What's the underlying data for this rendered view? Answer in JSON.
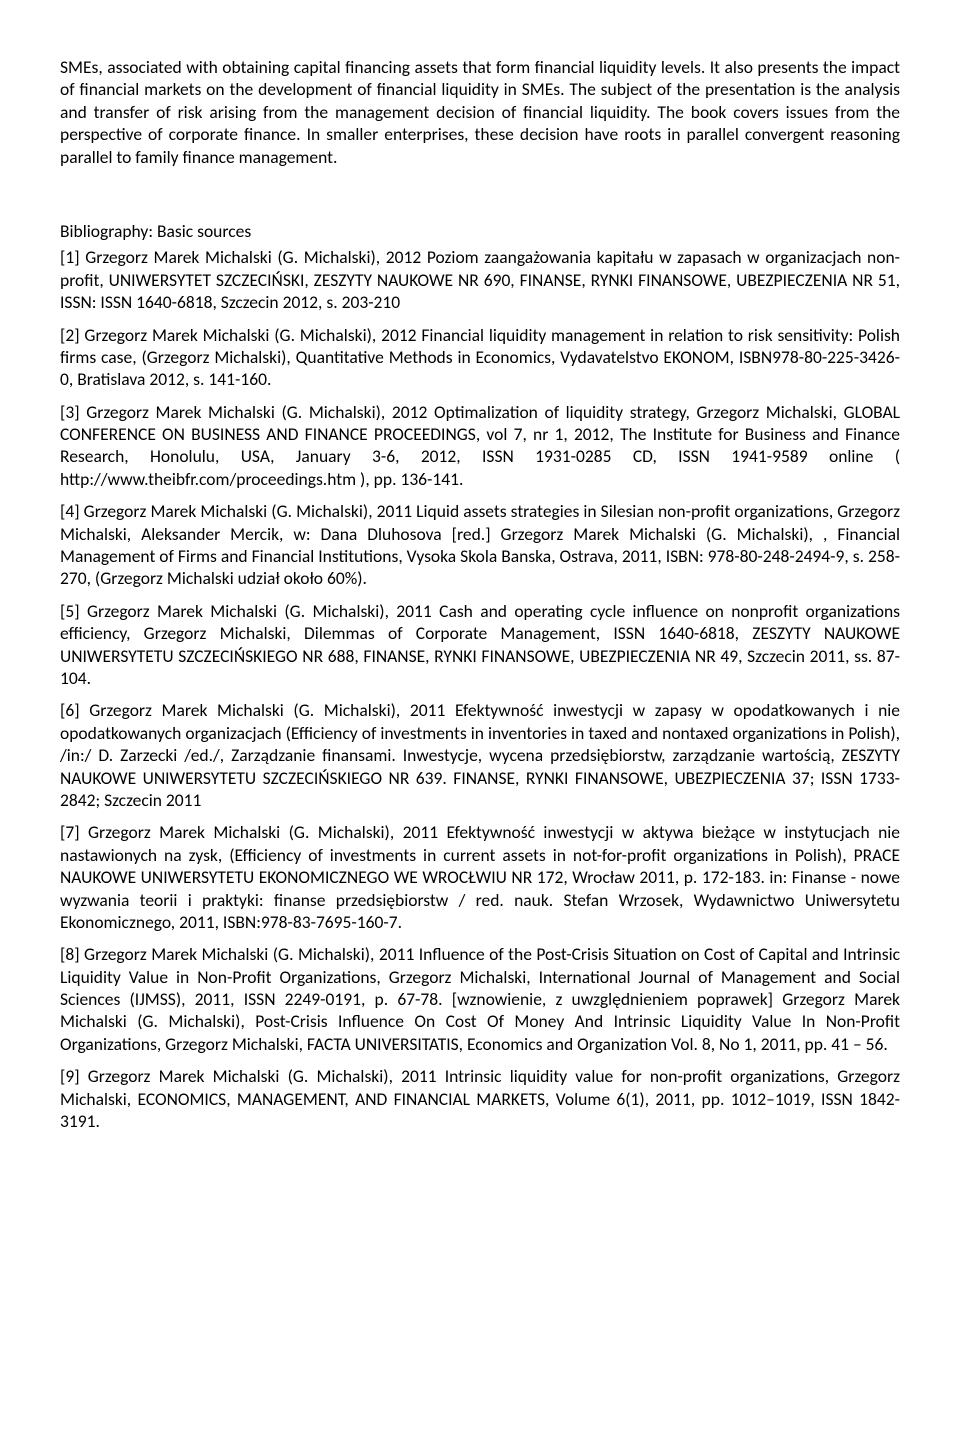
{
  "intro": "SMEs, associated with obtaining capital financing assets that form financial liquidity levels. It also presents the impact of financial markets on the development of financial liquidity in SMEs. The subject of the presentation is the analysis and transfer of risk arising from the management decision of financial liquidity. The book covers issues from the perspective of corporate finance. In smaller enterprises, these decision have roots in parallel convergent reasoning parallel to family finance management.",
  "biblio": {
    "heading": "Bibliography: Basic sources",
    "items": [
      "[1] Grzegorz Marek Michalski (G. Michalski),  2012 Poziom zaangażowania kapitału w zapasach w organizacjach non-profit, UNIWERSYTET SZCZECIŃSKI, ZESZYTY NAUKOWE NR 690, FINANSE, RYNKI FINANSOWE, UBEZPIECZENIA NR 51,  ISSN: ISSN 1640-6818, Szczecin 2012, s. 203-210",
      "[2] Grzegorz Marek Michalski (G. Michalski),  2012 Financial liquidity management in relation to risk sensitivity: Polish firms case, (Grzegorz Michalski), Quantitative Methods in Economics, Vydavatelstvo EKONOM, ISBN978-80-225-3426-0, Bratislava 2012, s. 141-160.",
      "[3] Grzegorz Marek Michalski (G. Michalski),  2012 Optimalization of liquidity strategy, Grzegorz Michalski, GLOBAL CONFERENCE ON BUSINESS AND FINANCE PROCEEDINGS, vol 7, nr 1, 2012, The Institute for Business and Finance Research, Honolulu, USA, January 3-6, 2012, ISSN 1931-0285 CD, ISSN 1941-9589 online ( http://www.theibfr.com/proceedings.htm ), pp. 136-141.",
      "[4] Grzegorz Marek Michalski (G. Michalski),  2011 Liquid assets strategies in Silesian non-profit organizations, Grzegorz Michalski, Aleksander Mercik, w: Dana Dluhosova [red.] Grzegorz Marek Michalski (G. Michalski), , Financial Management of Firms and Financial Institutions, Vysoka Skola Banska, Ostrava, 2011, ISBN: 978-80-248-2494-9, s. 258-270, (Grzegorz Michalski udział około 60%).",
      "[5] Grzegorz Marek Michalski (G. Michalski),  2011 Cash and operating cycle influence on nonprofit organizations efficiency, Grzegorz Michalski, Dilemmas of Corporate Management, ISSN 1640-6818, ZESZYTY NAUKOWE UNIWERSYTETU SZCZECIŃSKIEGO NR 688, FINANSE, RYNKI FINANSOWE, UBEZPIECZENIA NR 49, Szczecin 2011, ss. 87-104.",
      "[6] Grzegorz Marek Michalski (G. Michalski),  2011 Efektywność inwestycji w zapasy w opodatkowanych i nie opodatkowanych organizacjach (Efficiency of investments in inventories in taxed and nontaxed organizations in Polish), /in:/ D. Zarzecki /ed./, Zarządzanie finansami. Inwestycje, wycena przedsiębiorstw, zarządzanie wartością, ZESZYTY NAUKOWE UNIWERSYTETU SZCZECIŃSKIEGO NR 639. FINANSE, RYNKI FINANSOWE, UBEZPIECZENIA 37; ISSN 1733-2842; Szczecin 2011",
      "[7] Grzegorz Marek Michalski (G. Michalski),  2011 Efektywność inwestycji w aktywa bieżące w instytucjach nie nastawionych na zysk, (Efficiency of investments in current assets in not-for-profit organizations in Polish), PRACE NAUKOWE UNIWERSYTETU EKONOMICZNEGO WE WROCŁWIU NR 172, Wrocław 2011, p. 172-183. in: Finanse - nowe wyzwania teorii i praktyki: finanse przedsiębiorstw / red. nauk. Stefan Wrzosek, Wydawnictwo Uniwersytetu Ekonomicznego, 2011, ISBN:978-83-7695-160-7.",
      "[8] Grzegorz Marek Michalski (G. Michalski),  2011 Influence of the Post-Crisis Situation on Cost of Capital and Intrinsic Liquidity Value in Non-Profit Organizations, Grzegorz Michalski, International Journal of Management and Social Sciences (IJMSS), 2011, ISSN 2249-0191, p. 67-78. [wznowienie, z uwzględnieniem poprawek] Grzegorz Marek Michalski (G. Michalski),  Post-Crisis Influence On Cost Of Money And Intrinsic Liquidity Value In Non-Profit Organizations, Grzegorz Michalski, FACTA UNIVERSITATIS, Economics and Organization Vol. 8, No 1, 2011, pp. 41 – 56.",
      "[9] Grzegorz Marek Michalski (G. Michalski),  2011 Intrinsic liquidity value for non-profit organizations, Grzegorz Michalski, ECONOMICS, MANAGEMENT, AND FINANCIAL MARKETS, Volume 6(1), 2011, pp. 1012–1019, ISSN 1842-3191."
    ]
  }
}
